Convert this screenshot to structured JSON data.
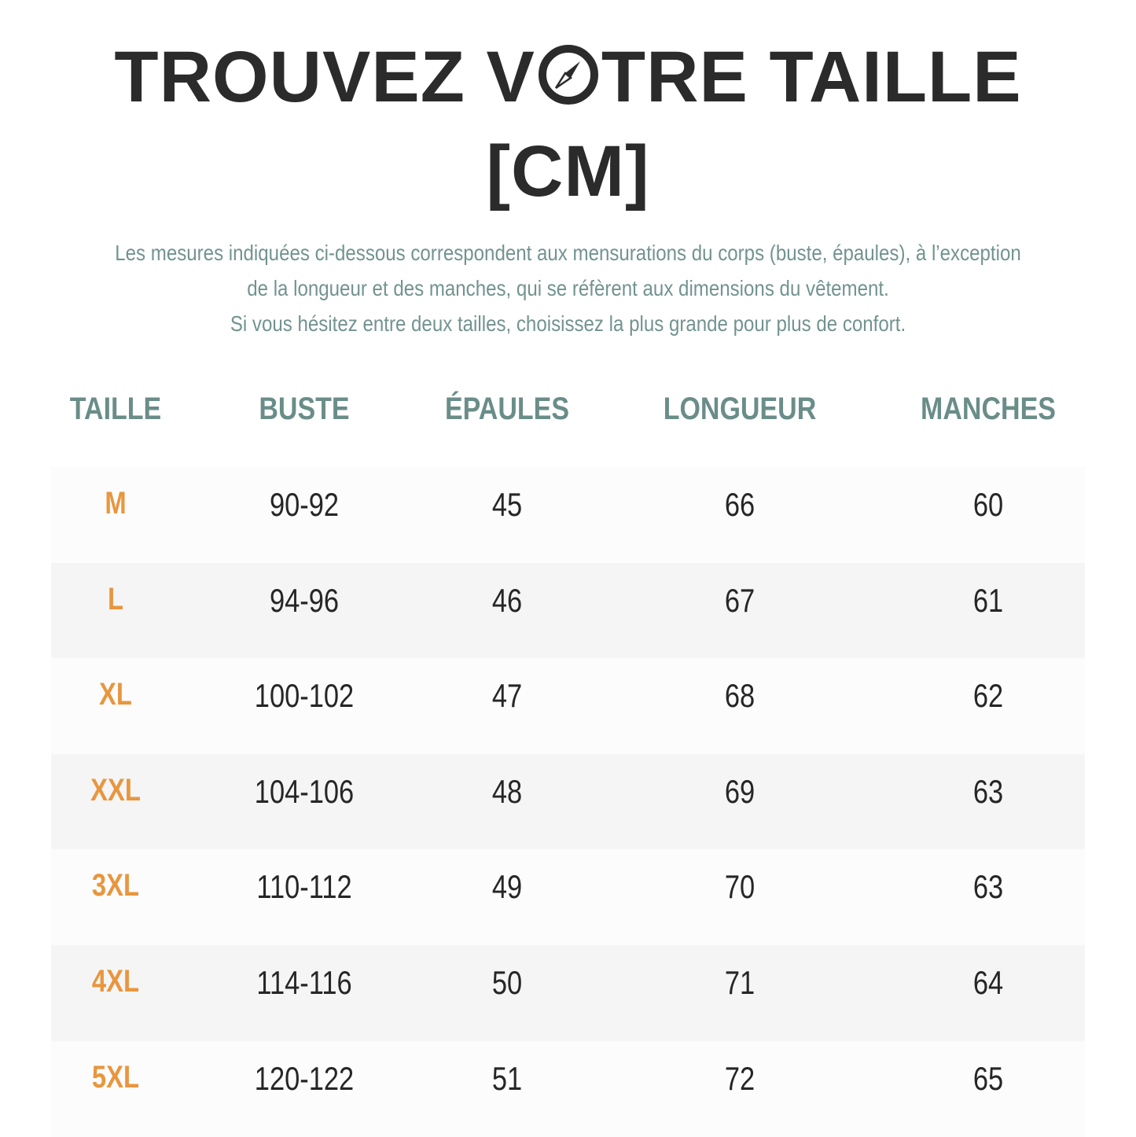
{
  "title": {
    "line1_before": "TROUVEZ V",
    "line1_after": "TRE TAILLE",
    "icon": "compass-icon",
    "line2": "[CM]"
  },
  "subtitle": [
    "Les mesures indiquées ci-dessous correspondent aux mensurations du corps (buste, épaules), à l’exception",
    "de la longueur et des manches, qui se réfèrent aux dimensions du vêtement.",
    "Si vous hésitez entre deux tailles, choisissez la plus grande pour plus de confort."
  ],
  "colors": {
    "title": "#2b2b2b",
    "header": "#6a8d89",
    "size": "#e8963e",
    "row_light": "#fcfcfc",
    "row_dark": "#f5f5f5"
  },
  "table": {
    "headers": [
      "TAILLE",
      "BUSTE",
      "ÉPAULES",
      "LONGUEUR",
      "MANCHES"
    ],
    "rows": [
      [
        "M",
        "90-92",
        "45",
        "66",
        "60"
      ],
      [
        "L",
        "94-96",
        "46",
        "67",
        "61"
      ],
      [
        "XL",
        "100-102",
        "47",
        "68",
        "62"
      ],
      [
        "XXL",
        "104-106",
        "48",
        "69",
        "63"
      ],
      [
        "3XL",
        "110-112",
        "49",
        "70",
        "63"
      ],
      [
        "4XL",
        "114-116",
        "50",
        "71",
        "64"
      ],
      [
        "5XL",
        "120-122",
        "51",
        "72",
        "65"
      ]
    ]
  }
}
